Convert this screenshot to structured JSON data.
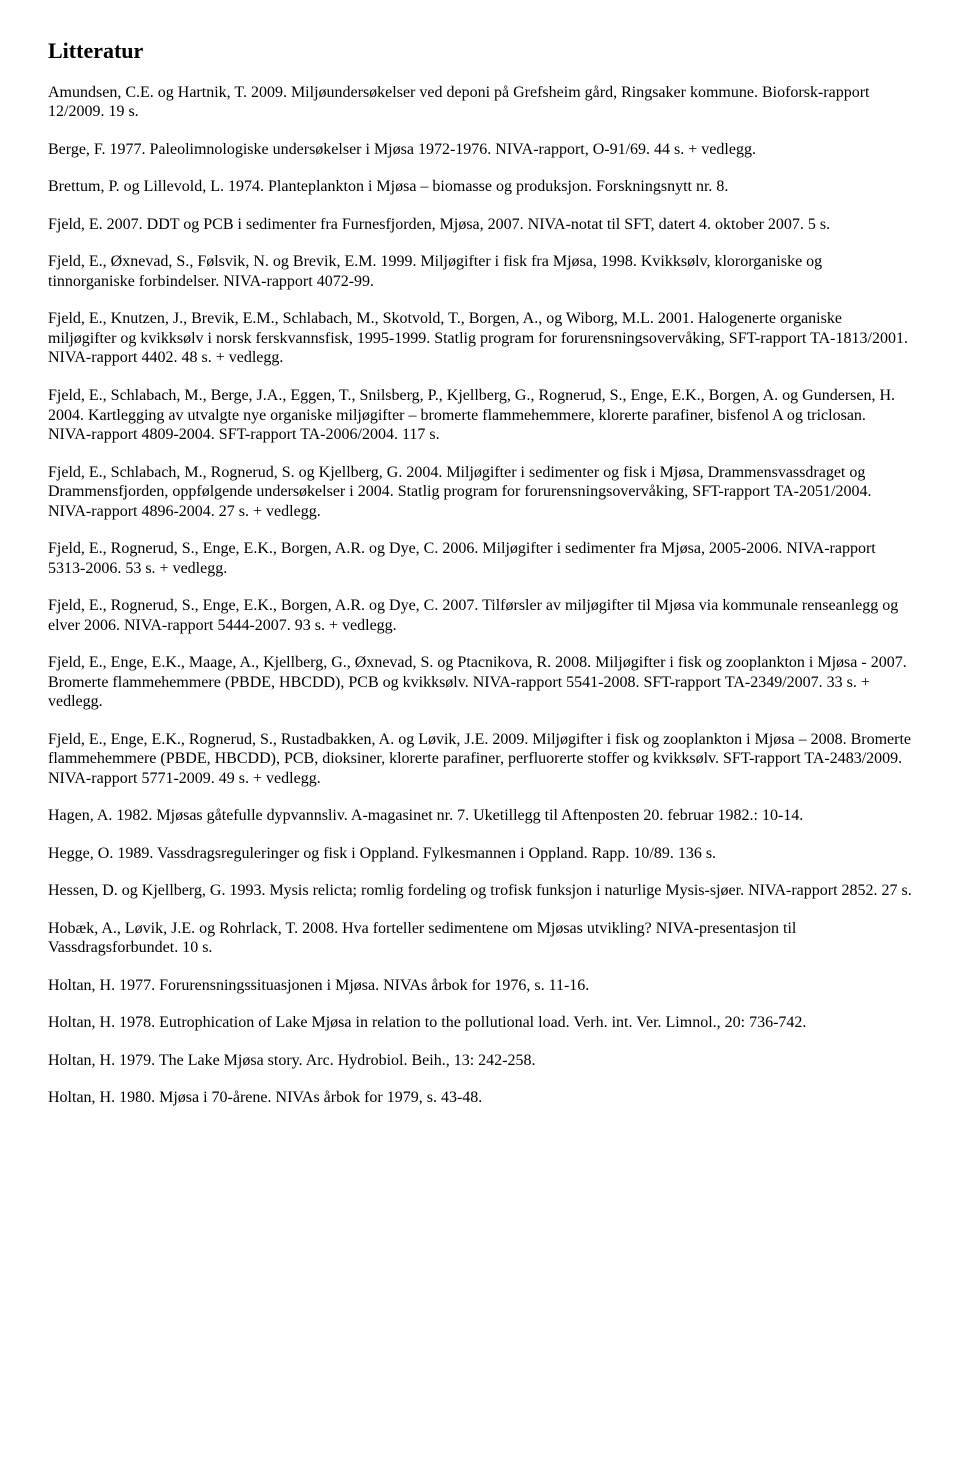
{
  "title": "Litteratur",
  "refs": [
    "Amundsen, C.E. og Hartnik, T. 2009. Miljøundersøkelser ved deponi på Grefsheim gård, Ringsaker kommune. Bioforsk-rapport 12/2009. 19 s.",
    "Berge, F. 1977. Paleolimnologiske undersøkelser i Mjøsa 1972-1976. NIVA-rapport, O-91/69. 44 s. + vedlegg.",
    "Brettum, P. og Lillevold, L. 1974. Planteplankton i Mjøsa – biomasse og produksjon. Forskningsnytt nr. 8.",
    "Fjeld, E. 2007. DDT og PCB i sedimenter fra Furnesfjorden, Mjøsa, 2007. NIVA-notat til SFT, datert 4. oktober 2007. 5 s.",
    "Fjeld, E., Øxnevad, S., Følsvik, N. og Brevik, E.M. 1999. Miljøgifter i fisk fra Mjøsa, 1998. Kvikksølv, klororganiske og tinnorganiske forbindelser. NIVA-rapport 4072-99.",
    "Fjeld, E., Knutzen, J., Brevik, E.M., Schlabach, M., Skotvold, T., Borgen, A., og Wiborg, M.L. 2001. Halogenerte organiske miljøgifter og kvikksølv i norsk ferskvannsfisk, 1995-1999. Statlig program for forurensningsovervåking, SFT-rapport TA-1813/2001. NIVA-rapport 4402. 48 s. + vedlegg.",
    "Fjeld, E., Schlabach, M., Berge, J.A., Eggen, T., Snilsberg, P., Kjellberg, G., Rognerud, S., Enge, E.K., Borgen, A. og Gundersen, H. 2004. Kartlegging av utvalgte nye organiske miljøgifter – bromerte flammehemmere, klorerte parafiner, bisfenol A og triclosan. NIVA-rapport 4809-2004. SFT-rapport TA-2006/2004. 117 s.",
    "Fjeld, E., Schlabach, M., Rognerud, S. og Kjellberg, G. 2004. Miljøgifter i sedimenter og fisk i Mjøsa, Drammensvassdraget og Drammensfjorden, oppfølgende undersøkelser i 2004. Statlig program for forurensningsovervåking, SFT-rapport TA-2051/2004. NIVA-rapport 4896-2004. 27 s. + vedlegg.",
    "Fjeld, E., Rognerud, S., Enge, E.K., Borgen, A.R. og Dye, C. 2006. Miljøgifter i sedimenter fra Mjøsa, 2005-2006. NIVA-rapport 5313-2006. 53 s. + vedlegg.",
    "Fjeld, E., Rognerud, S., Enge, E.K., Borgen, A.R. og Dye, C. 2007. Tilførsler av miljøgifter til Mjøsa via kommunale renseanlegg og elver 2006. NIVA-rapport 5444-2007. 93 s. + vedlegg.",
    "Fjeld, E., Enge, E.K., Maage, A., Kjellberg, G., Øxnevad, S. og Ptacnikova, R. 2008. Miljøgifter i fisk og zooplankton i Mjøsa - 2007. Bromerte flammehemmere (PBDE, HBCDD), PCB og kvikksølv. NIVA-rapport 5541-2008. SFT-rapport TA-2349/2007. 33 s. + vedlegg.",
    "Fjeld, E., Enge, E.K., Rognerud, S., Rustadbakken, A. og Løvik, J.E. 2009. Miljøgifter i fisk og zooplankton i Mjøsa – 2008. Bromerte flammehemmere (PBDE, HBCDD), PCB, dioksiner, klorerte parafiner, perfluorerte stoffer og kvikksølv. SFT-rapport TA-2483/2009. NIVA-rapport 5771-2009. 49 s. + vedlegg.",
    "Hagen, A. 1982. Mjøsas gåtefulle dypvannsliv. A-magasinet nr. 7. Uketillegg til Aftenposten 20. februar 1982.: 10-14.",
    "Hegge, O. 1989. Vassdragsreguleringer og fisk i Oppland. Fylkesmannen i Oppland. Rapp. 10/89. 136 s.",
    "Hessen, D. og Kjellberg, G. 1993. Mysis relicta; romlig fordeling og trofisk funksjon i naturlige Mysis-sjøer. NIVA-rapport 2852. 27 s.",
    "Hobæk, A., Løvik, J.E. og Rohrlack, T. 2008. Hva forteller sedimentene om Mjøsas utvikling? NIVA-presentasjon til Vassdragsforbundet. 10 s.",
    "Holtan, H. 1977. Forurensningssituasjonen i Mjøsa. NIVAs årbok for 1976, s. 11-16.",
    "Holtan, H. 1978. Eutrophication of Lake Mjøsa in relation to the pollutional load. Verh. int. Ver. Limnol., 20: 736-742.",
    "Holtan, H. 1979. The Lake Mjøsa story. Arc. Hydrobiol. Beih., 13: 242-258.",
    "Holtan, H. 1980. Mjøsa i 70-årene. NIVAs årbok for 1979, s. 43-48."
  ]
}
